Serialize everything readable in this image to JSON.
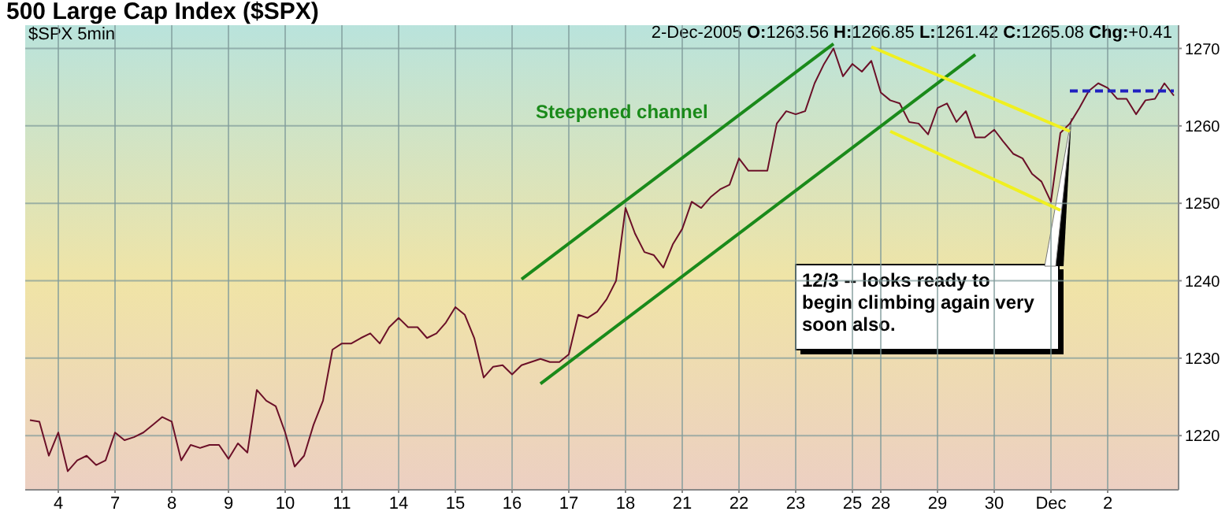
{
  "chart_data": {
    "type": "line",
    "title": "500 Large Cap Index ($SPX)",
    "subtitle": "$SPX 5min",
    "annotations": [
      "2-Dec-2005 O:1263.56 H:1266.85 L:1261.42 C:1265.08 Chg:+0.41",
      "Steepened channel",
      "12/3 -- looks ready to begin climbing again very soon also."
    ],
    "categories": [
      null,
      null,
      null,
      "4",
      null,
      null,
      null,
      null,
      null,
      "7",
      null,
      null,
      null,
      null,
      null,
      "8",
      null,
      null,
      null,
      null,
      null,
      "9",
      null,
      null,
      null,
      null,
      null,
      "10",
      null,
      null,
      null,
      null,
      null,
      "11",
      null,
      null,
      null,
      null,
      null,
      "14",
      null,
      null,
      null,
      null,
      null,
      "15",
      null,
      null,
      null,
      null,
      null,
      "16",
      null,
      null,
      null,
      null,
      null,
      "17",
      null,
      null,
      null,
      null,
      null,
      "18",
      null,
      null,
      null,
      null,
      null,
      "21",
      null,
      null,
      null,
      null,
      null,
      "22",
      null,
      null,
      null,
      null,
      null,
      "23",
      null,
      null,
      null,
      null,
      null,
      "25",
      null,
      null,
      "28",
      null,
      null,
      null,
      null,
      null,
      "29",
      null,
      null,
      null,
      null,
      null,
      "30",
      null,
      null,
      null,
      null,
      null,
      "Dec",
      null,
      null,
      null,
      null,
      null,
      "2",
      null,
      null,
      null,
      null,
      null,
      null,
      null
    ],
    "ylim": [
      1213,
      1273
    ],
    "yticks": [
      1220,
      1230,
      1240,
      1250,
      1260,
      1270
    ],
    "grid": true,
    "marker": "none",
    "series": [
      {
        "color": "#6b1028",
        "line_style": "solid",
        "values": [
          1222.0,
          1221.8,
          1217.4,
          1220.4,
          1215.4,
          1216.8,
          1217.4,
          1216.2,
          1216.8,
          1220.4,
          1219.4,
          1219.8,
          1220.4,
          1221.4,
          1222.4,
          1221.8,
          1216.8,
          1218.8,
          1218.4,
          1218.8,
          1218.8,
          1217.0,
          1219.0,
          1217.8,
          1225.9,
          1224.5,
          1223.8,
          1220.4,
          1216.0,
          1217.4,
          1221.4,
          1224.5,
          1231.1,
          1231.9,
          1231.9,
          1232.6,
          1233.2,
          1231.9,
          1234.0,
          1235.2,
          1234.0,
          1234.0,
          1232.6,
          1233.2,
          1234.6,
          1236.6,
          1235.6,
          1232.6,
          1227.5,
          1228.9,
          1229.1,
          1227.9,
          1229.1,
          1229.5,
          1229.9,
          1229.5,
          1229.5,
          1230.5,
          1235.6,
          1235.2,
          1236.0,
          1237.6,
          1240.0,
          1249.4,
          1246.1,
          1243.7,
          1243.3,
          1241.7,
          1244.7,
          1246.7,
          1250.2,
          1249.4,
          1250.8,
          1251.8,
          1252.4,
          1255.8,
          1254.2,
          1254.2,
          1254.2,
          1260.3,
          1261.9,
          1261.5,
          1261.9,
          1265.5,
          1268.0,
          1270.0,
          1266.4,
          1268.0,
          1267.0,
          1268.4,
          1264.3,
          1263.3,
          1262.9,
          1260.5,
          1260.3,
          1258.9,
          1262.3,
          1262.9,
          1260.5,
          1261.9,
          1258.5,
          1258.5,
          1259.5,
          1257.9,
          1256.4,
          1255.8,
          1253.8,
          1252.8,
          1250.2,
          1259.1,
          1260.3,
          1262.3,
          1264.5,
          1265.5,
          1264.9,
          1263.5,
          1263.5,
          1261.5,
          1263.3,
          1263.5,
          1265.5,
          1263.9
        ]
      },
      {
        "color": "#1a8a1a",
        "line_style": "solid",
        "values": [
          null,
          null,
          null,
          null,
          null,
          null,
          null,
          null,
          null,
          null,
          null,
          null,
          null,
          null,
          null,
          null,
          null,
          null,
          null,
          null,
          null,
          null,
          null,
          null,
          null,
          null,
          null,
          null,
          null,
          null,
          null,
          null,
          null,
          null,
          null,
          null,
          null,
          null,
          null,
          null,
          null,
          null,
          null,
          null,
          null,
          null,
          null,
          null,
          null,
          null,
          null,
          null,
          1240.2,
          null,
          null,
          null,
          null,
          null,
          null,
          null,
          null,
          null,
          null,
          null,
          null,
          null,
          null,
          null,
          null,
          null,
          null,
          null,
          null,
          null,
          null,
          null,
          null,
          null,
          null,
          null,
          null,
          null,
          null,
          null,
          null,
          1270.6,
          null,
          null,
          null,
          null,
          null,
          null,
          null,
          null,
          null,
          null,
          null,
          null,
          null,
          null,
          null,
          null,
          null,
          null,
          null,
          null,
          null,
          null,
          null,
          null,
          null,
          null,
          null,
          null,
          null,
          null,
          null,
          null,
          null,
          null,
          null,
          null
        ]
      },
      {
        "color": "#1a8a1a",
        "line_style": "solid",
        "values": [
          null,
          null,
          null,
          null,
          null,
          null,
          null,
          null,
          null,
          null,
          null,
          null,
          null,
          null,
          null,
          null,
          null,
          null,
          null,
          null,
          null,
          null,
          null,
          null,
          null,
          null,
          null,
          null,
          null,
          null,
          null,
          null,
          null,
          null,
          null,
          null,
          null,
          null,
          null,
          null,
          null,
          null,
          null,
          null,
          null,
          null,
          null,
          null,
          null,
          null,
          null,
          null,
          null,
          null,
          1226.7,
          null,
          null,
          null,
          null,
          null,
          null,
          null,
          null,
          null,
          null,
          null,
          null,
          null,
          null,
          null,
          null,
          null,
          null,
          null,
          null,
          null,
          null,
          null,
          null,
          null,
          null,
          null,
          null,
          null,
          null,
          null,
          null,
          null,
          null,
          null,
          null,
          null,
          null,
          null,
          null,
          null,
          null,
          null,
          null,
          null,
          1269.2,
          null,
          null,
          null,
          null,
          null,
          null,
          null,
          null,
          null,
          null,
          null,
          null,
          null,
          null,
          null,
          null,
          null,
          null,
          null,
          null,
          null
        ]
      },
      {
        "color": "#f0f020",
        "line_style": "solid",
        "values": [
          null,
          null,
          null,
          null,
          null,
          null,
          null,
          null,
          null,
          null,
          null,
          null,
          null,
          null,
          null,
          null,
          null,
          null,
          null,
          null,
          null,
          null,
          null,
          null,
          null,
          null,
          null,
          null,
          null,
          null,
          null,
          null,
          null,
          null,
          null,
          null,
          null,
          null,
          null,
          null,
          null,
          null,
          null,
          null,
          null,
          null,
          null,
          null,
          null,
          null,
          null,
          null,
          null,
          null,
          null,
          null,
          null,
          null,
          null,
          null,
          null,
          null,
          null,
          null,
          null,
          null,
          null,
          null,
          null,
          null,
          null,
          null,
          null,
          null,
          null,
          null,
          null,
          null,
          null,
          null,
          null,
          null,
          null,
          null,
          null,
          null,
          null,
          null,
          null,
          1270.2,
          null,
          null,
          null,
          null,
          null,
          null,
          null,
          null,
          null,
          null,
          null,
          null,
          null,
          null,
          null,
          null,
          null,
          null,
          null,
          null,
          1259.3,
          null,
          null,
          null,
          null,
          null,
          null,
          null,
          null,
          null,
          null,
          null
        ]
      },
      {
        "color": "#f0f020",
        "line_style": "solid",
        "values": [
          null,
          null,
          null,
          null,
          null,
          null,
          null,
          null,
          null,
          null,
          null,
          null,
          null,
          null,
          null,
          null,
          null,
          null,
          null,
          null,
          null,
          null,
          null,
          null,
          null,
          null,
          null,
          null,
          null,
          null,
          null,
          null,
          null,
          null,
          null,
          null,
          null,
          null,
          null,
          null,
          null,
          null,
          null,
          null,
          null,
          null,
          null,
          null,
          null,
          null,
          null,
          null,
          null,
          null,
          null,
          null,
          null,
          null,
          null,
          null,
          null,
          null,
          null,
          null,
          null,
          null,
          null,
          null,
          null,
          null,
          null,
          null,
          null,
          null,
          null,
          null,
          null,
          null,
          null,
          null,
          null,
          null,
          null,
          null,
          null,
          null,
          null,
          null,
          null,
          null,
          null,
          1259.3,
          null,
          null,
          null,
          null,
          null,
          null,
          null,
          null,
          null,
          null,
          null,
          null,
          null,
          null,
          null,
          null,
          null,
          1249.1,
          null,
          null,
          null,
          null,
          null,
          null,
          null,
          null,
          null,
          null,
          null,
          null
        ]
      },
      {
        "color": "#2020c0",
        "line_style": "dashed",
        "values": [
          null,
          null,
          null,
          null,
          null,
          null,
          null,
          null,
          null,
          null,
          null,
          null,
          null,
          null,
          null,
          null,
          null,
          null,
          null,
          null,
          null,
          null,
          null,
          null,
          null,
          null,
          null,
          null,
          null,
          null,
          null,
          null,
          null,
          null,
          null,
          null,
          null,
          null,
          null,
          null,
          null,
          null,
          null,
          null,
          null,
          null,
          null,
          null,
          null,
          null,
          null,
          null,
          null,
          null,
          null,
          null,
          null,
          null,
          null,
          null,
          null,
          null,
          null,
          null,
          null,
          null,
          null,
          null,
          null,
          null,
          null,
          null,
          null,
          null,
          null,
          null,
          null,
          null,
          null,
          null,
          null,
          null,
          null,
          null,
          null,
          null,
          null,
          null,
          null,
          null,
          null,
          null,
          null,
          null,
          null,
          null,
          null,
          null,
          null,
          null,
          null,
          null,
          null,
          null,
          null,
          null,
          null,
          null,
          null,
          null,
          1264.5,
          1264.5,
          1264.5,
          1264.5,
          1264.5,
          1264.5,
          1264.5,
          1264.5,
          1264.5,
          1264.5,
          1264.5,
          1264.5
        ]
      }
    ]
  }
}
